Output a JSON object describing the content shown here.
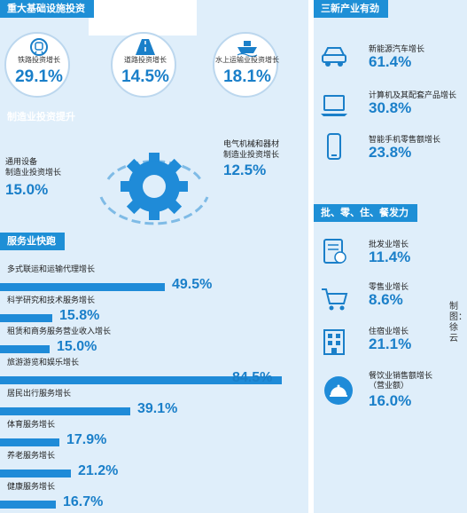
{
  "sections": {
    "infrastructure": "重大基础设施投资",
    "new_industry": "三新产业有劲",
    "manufacturing": "制造业投资提升",
    "services": "服务业快跑",
    "retail": "批、零、住、餐发力"
  },
  "infrastructure_items": [
    {
      "label": "铁路投资增长",
      "value": "29.1%",
      "icon": "train-icon"
    },
    {
      "label": "道路投资增长",
      "value": "14.5%",
      "icon": "road-icon"
    },
    {
      "label": "水上运输业投资增长",
      "value": "18.1%",
      "icon": "ship-icon"
    }
  ],
  "manufacturing_items": [
    {
      "label_line1": "通用设备",
      "label_line2": "制造业投资增长",
      "value": "15.0%"
    },
    {
      "label_line1": "电气机械和器材",
      "label_line2": "制造业投资增长",
      "value": "12.5%"
    }
  ],
  "new_industry_items": [
    {
      "label": "新能源汽车增长",
      "value": "61.4%",
      "icon": "car-charge-icon"
    },
    {
      "label": "计算机及其配套产品增长",
      "value": "30.8%",
      "icon": "laptop-icon"
    },
    {
      "label": "智能手机零售额增长",
      "value": "23.8%",
      "icon": "smartphone-icon"
    }
  ],
  "retail_items": [
    {
      "label": "批发业增长",
      "value": "11.4%",
      "icon": "wholesale-icon"
    },
    {
      "label": "零售业增长",
      "value": "8.6%",
      "icon": "cart-icon"
    },
    {
      "label": "住宿业增长",
      "value": "21.1%",
      "icon": "hotel-icon"
    },
    {
      "label_line1": "餐饮业销售额增长",
      "label_line2": "（营业额）",
      "value": "16.0%",
      "icon": "dining-bell-icon"
    }
  ],
  "credit": "制图：徐云",
  "chart_data": {
    "type": "bar",
    "categories": [
      "多式联运和运输代理增长",
      "科学研究和技术服务增长",
      "租赁和商务服务营业收入增长",
      "旅游游览和娱乐增长",
      "居民出行服务增长",
      "体育服务增长",
      "养老服务增长",
      "健康服务增长"
    ],
    "values": [
      49.5,
      15.8,
      15.0,
      84.5,
      39.1,
      17.9,
      21.2,
      16.7
    ],
    "value_labels": [
      "49.5%",
      "15.8%",
      "15.0%",
      "84.5%",
      "39.1%",
      "17.9%",
      "21.2%",
      "16.7%"
    ],
    "xlim": [
      0,
      84.5
    ]
  }
}
